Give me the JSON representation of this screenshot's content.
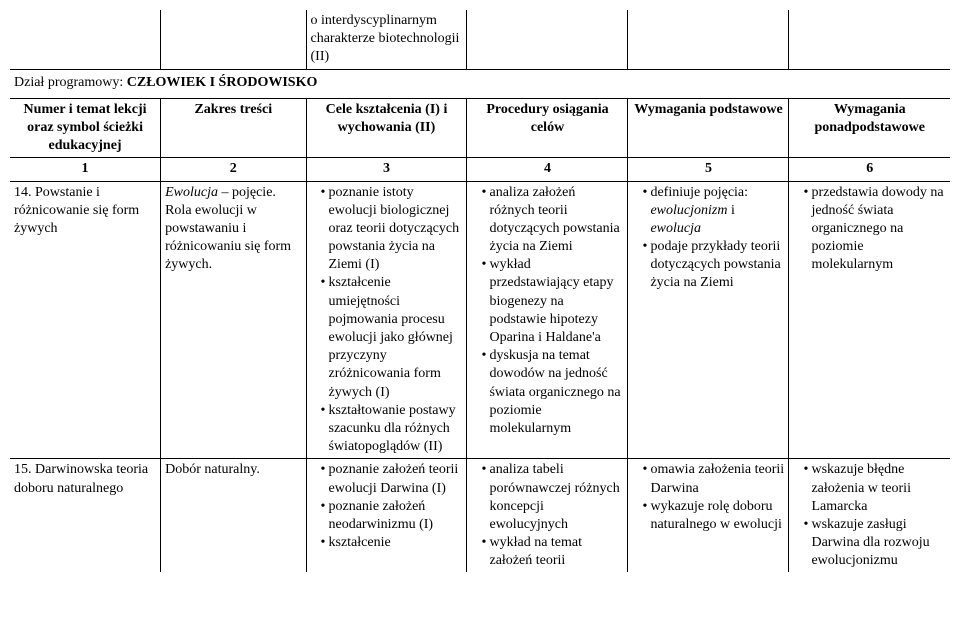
{
  "top_fragment": {
    "cell2": "o interdyscyplinarnym charakterze biotechnologii (II)"
  },
  "section": {
    "prefix": "Dział programowy: ",
    "title": "CZŁOWIEK I ŚRODOWISKO"
  },
  "headers": {
    "h0": "Numer i temat lekcji oraz symbol ścieżki edukacyjnej",
    "h1": "Zakres treści",
    "h2": "Cele kształcenia (I) i wychowania (II)",
    "h3": "Procedury osiągania celów",
    "h4": "Wymagania podstawowe",
    "h5": "Wymagania ponadpodstawowe"
  },
  "nums": {
    "n0": "1",
    "n1": "2",
    "n2": "3",
    "n3": "4",
    "n4": "5",
    "n5": "6"
  },
  "row14": {
    "topic": "14. Powstanie i różnicowanie się form żywych",
    "zakres_italic": "Ewolucja",
    "zakres_rest": " – pojęcie. Rola ewolucji w powstawaniu i różnicowaniu się form żywych.",
    "cele": [
      "poznanie istoty ewolucji biologicznej oraz teorii dotyczących powstania życia na Ziemi (I)",
      "kształcenie umiejętności pojmowania procesu ewolucji jako głównej przyczyny zróżnicowania form żywych (I)",
      "kształtowanie postawy szacunku dla różnych światopoglądów (II)"
    ],
    "procedury": [
      "analiza założeń różnych teorii dotyczących powstania życia na Ziemi",
      "wykład przedstawiający etapy biogenezy na podstawie hipotezy Oparina i Haldane'a",
      "dyskusja na temat dowodów na jedność świata organicznego na poziomie molekularnym"
    ],
    "podst_b1_pre": "definiuje pojęcia: ",
    "podst_b1_it1": "ewolucjonizm",
    "podst_b1_mid": " i ",
    "podst_b1_it2": "ewolucja",
    "podst_b2": "podaje przykłady teorii dotyczących powstania życia na Ziemi",
    "ponad": [
      "przedstawia dowody na jedność świata organicznego na poziomie molekularnym"
    ]
  },
  "row15": {
    "topic": "15. Darwinowska teoria doboru naturalnego",
    "zakres": "Dobór naturalny.",
    "cele": [
      "poznanie założeń teorii ewolucji Darwina (I)",
      "poznanie założeń neodarwinizmu (I)",
      "kształcenie"
    ],
    "procedury": [
      "analiza tabeli porównawczej różnych koncepcji ewolucyjnych",
      "wykład na temat założeń teorii"
    ],
    "podst": [
      "omawia założenia teorii Darwina",
      "wykazuje rolę doboru naturalnego w ewolucji"
    ],
    "ponad": [
      "wskazuje błędne założenia w teorii Lamarcka",
      "wskazuje zasługi Darwina dla rozwoju ewolucjonizmu"
    ]
  }
}
